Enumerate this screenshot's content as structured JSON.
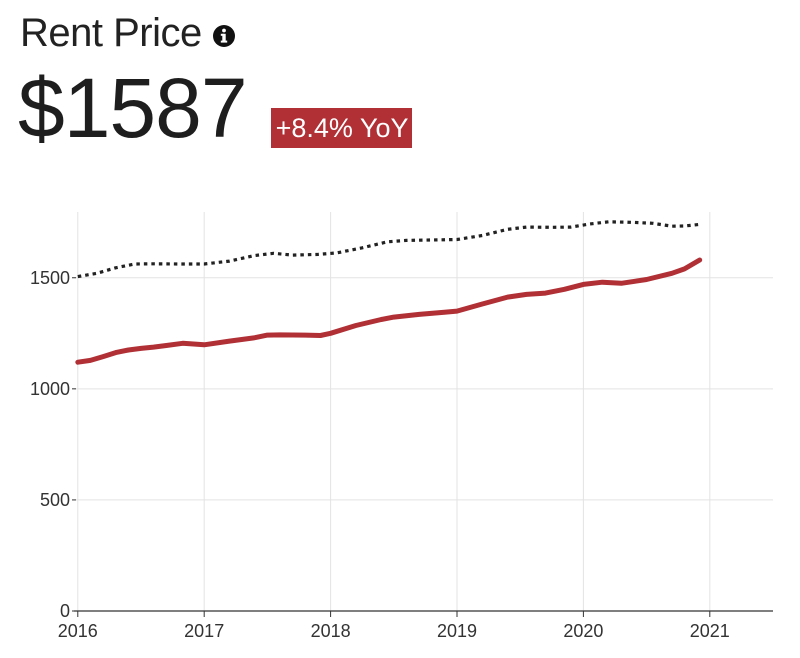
{
  "header": {
    "title": "Rent Price",
    "info_icon": "info-circle-icon",
    "price": "$1587",
    "badge": "+8.4% YoY",
    "badge_color": "#b03036"
  },
  "chart_data": {
    "type": "line",
    "xlim": [
      2015.97,
      2021.5
    ],
    "ylim": [
      0,
      1850
    ],
    "x_ticks": [
      2016,
      2017,
      2018,
      2019,
      2020,
      2021
    ],
    "y_ticks": [
      0,
      500,
      1000,
      1500
    ],
    "grid": true,
    "series": [
      {
        "style": "solid",
        "color": "#b03036",
        "points": [
          [
            2016.0,
            1120
          ],
          [
            2016.1,
            1128
          ],
          [
            2016.2,
            1145
          ],
          [
            2016.3,
            1163
          ],
          [
            2016.4,
            1175
          ],
          [
            2016.5,
            1182
          ],
          [
            2016.6,
            1188
          ],
          [
            2016.7,
            1195
          ],
          [
            2016.83,
            1205
          ],
          [
            2017.0,
            1198
          ],
          [
            2017.2,
            1215
          ],
          [
            2017.4,
            1230
          ],
          [
            2017.5,
            1242
          ],
          [
            2017.6,
            1243
          ],
          [
            2017.8,
            1242
          ],
          [
            2017.92,
            1240
          ],
          [
            2018.0,
            1250
          ],
          [
            2018.2,
            1285
          ],
          [
            2018.4,
            1312
          ],
          [
            2018.5,
            1323
          ],
          [
            2018.7,
            1335
          ],
          [
            2018.9,
            1345
          ],
          [
            2019.0,
            1350
          ],
          [
            2019.2,
            1382
          ],
          [
            2019.4,
            1413
          ],
          [
            2019.55,
            1425
          ],
          [
            2019.7,
            1431
          ],
          [
            2019.85,
            1448
          ],
          [
            2020.0,
            1470
          ],
          [
            2020.15,
            1480
          ],
          [
            2020.3,
            1475
          ],
          [
            2020.5,
            1492
          ],
          [
            2020.7,
            1520
          ],
          [
            2020.8,
            1540
          ],
          [
            2020.92,
            1580
          ]
        ]
      },
      {
        "style": "dotted",
        "color": "#222222",
        "points": [
          [
            2016.0,
            1505
          ],
          [
            2016.15,
            1520
          ],
          [
            2016.3,
            1545
          ],
          [
            2016.45,
            1562
          ],
          [
            2016.6,
            1563
          ],
          [
            2016.8,
            1562
          ],
          [
            2017.0,
            1562
          ],
          [
            2017.2,
            1575
          ],
          [
            2017.4,
            1600
          ],
          [
            2017.55,
            1610
          ],
          [
            2017.7,
            1602
          ],
          [
            2017.9,
            1605
          ],
          [
            2018.05,
            1612
          ],
          [
            2018.25,
            1635
          ],
          [
            2018.45,
            1662
          ],
          [
            2018.6,
            1668
          ],
          [
            2018.8,
            1670
          ],
          [
            2019.0,
            1672
          ],
          [
            2019.2,
            1690
          ],
          [
            2019.4,
            1718
          ],
          [
            2019.55,
            1728
          ],
          [
            2019.75,
            1727
          ],
          [
            2019.9,
            1728
          ],
          [
            2020.05,
            1742
          ],
          [
            2020.2,
            1752
          ],
          [
            2020.4,
            1749
          ],
          [
            2020.55,
            1745
          ],
          [
            2020.7,
            1732
          ],
          [
            2020.8,
            1733
          ],
          [
            2020.92,
            1740
          ]
        ]
      }
    ]
  }
}
